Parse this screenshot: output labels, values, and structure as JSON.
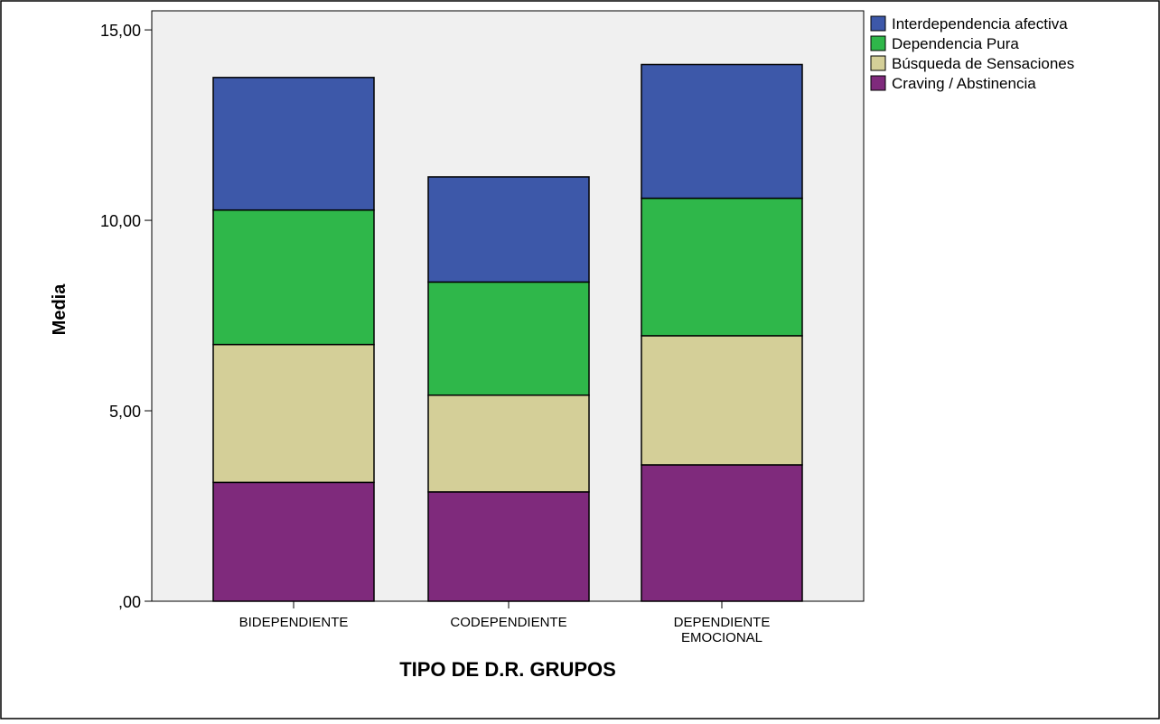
{
  "chart_data": {
    "type": "bar",
    "stacked": true,
    "xlabel": "TIPO DE D.R. GRUPOS",
    "ylabel": "Media",
    "ylim": [
      0,
      15.5
    ],
    "yticks": [
      0,
      5,
      10,
      15
    ],
    "ytick_labels": [
      ",00",
      "5,00",
      "10,00",
      "15,00"
    ],
    "grid": false,
    "legend_position": "top-right",
    "categories": [
      [
        "BIDEPENDIENTE"
      ],
      [
        "CODEPENDIENTE"
      ],
      [
        "DEPENDIENTE",
        "EMOCIONAL"
      ]
    ],
    "series": [
      {
        "name": "Craving / Abstinencia",
        "color": "#7f2a7c",
        "values": [
          3.12,
          2.87,
          3.58
        ]
      },
      {
        "name": "Búsqueda de Sensaciones",
        "color": "#d4cf98",
        "values": [
          3.62,
          2.54,
          3.39
        ]
      },
      {
        "name": "Dependencia Pura",
        "color": "#2fb74a",
        "values": [
          3.53,
          2.97,
          3.61
        ]
      },
      {
        "name": "Interdependencia afectiva",
        "color": "#3d58a9",
        "values": [
          3.48,
          2.76,
          3.51
        ]
      }
    ],
    "legend_order": [
      3,
      2,
      1,
      0
    ],
    "plot_background": "#f0f0f0"
  }
}
